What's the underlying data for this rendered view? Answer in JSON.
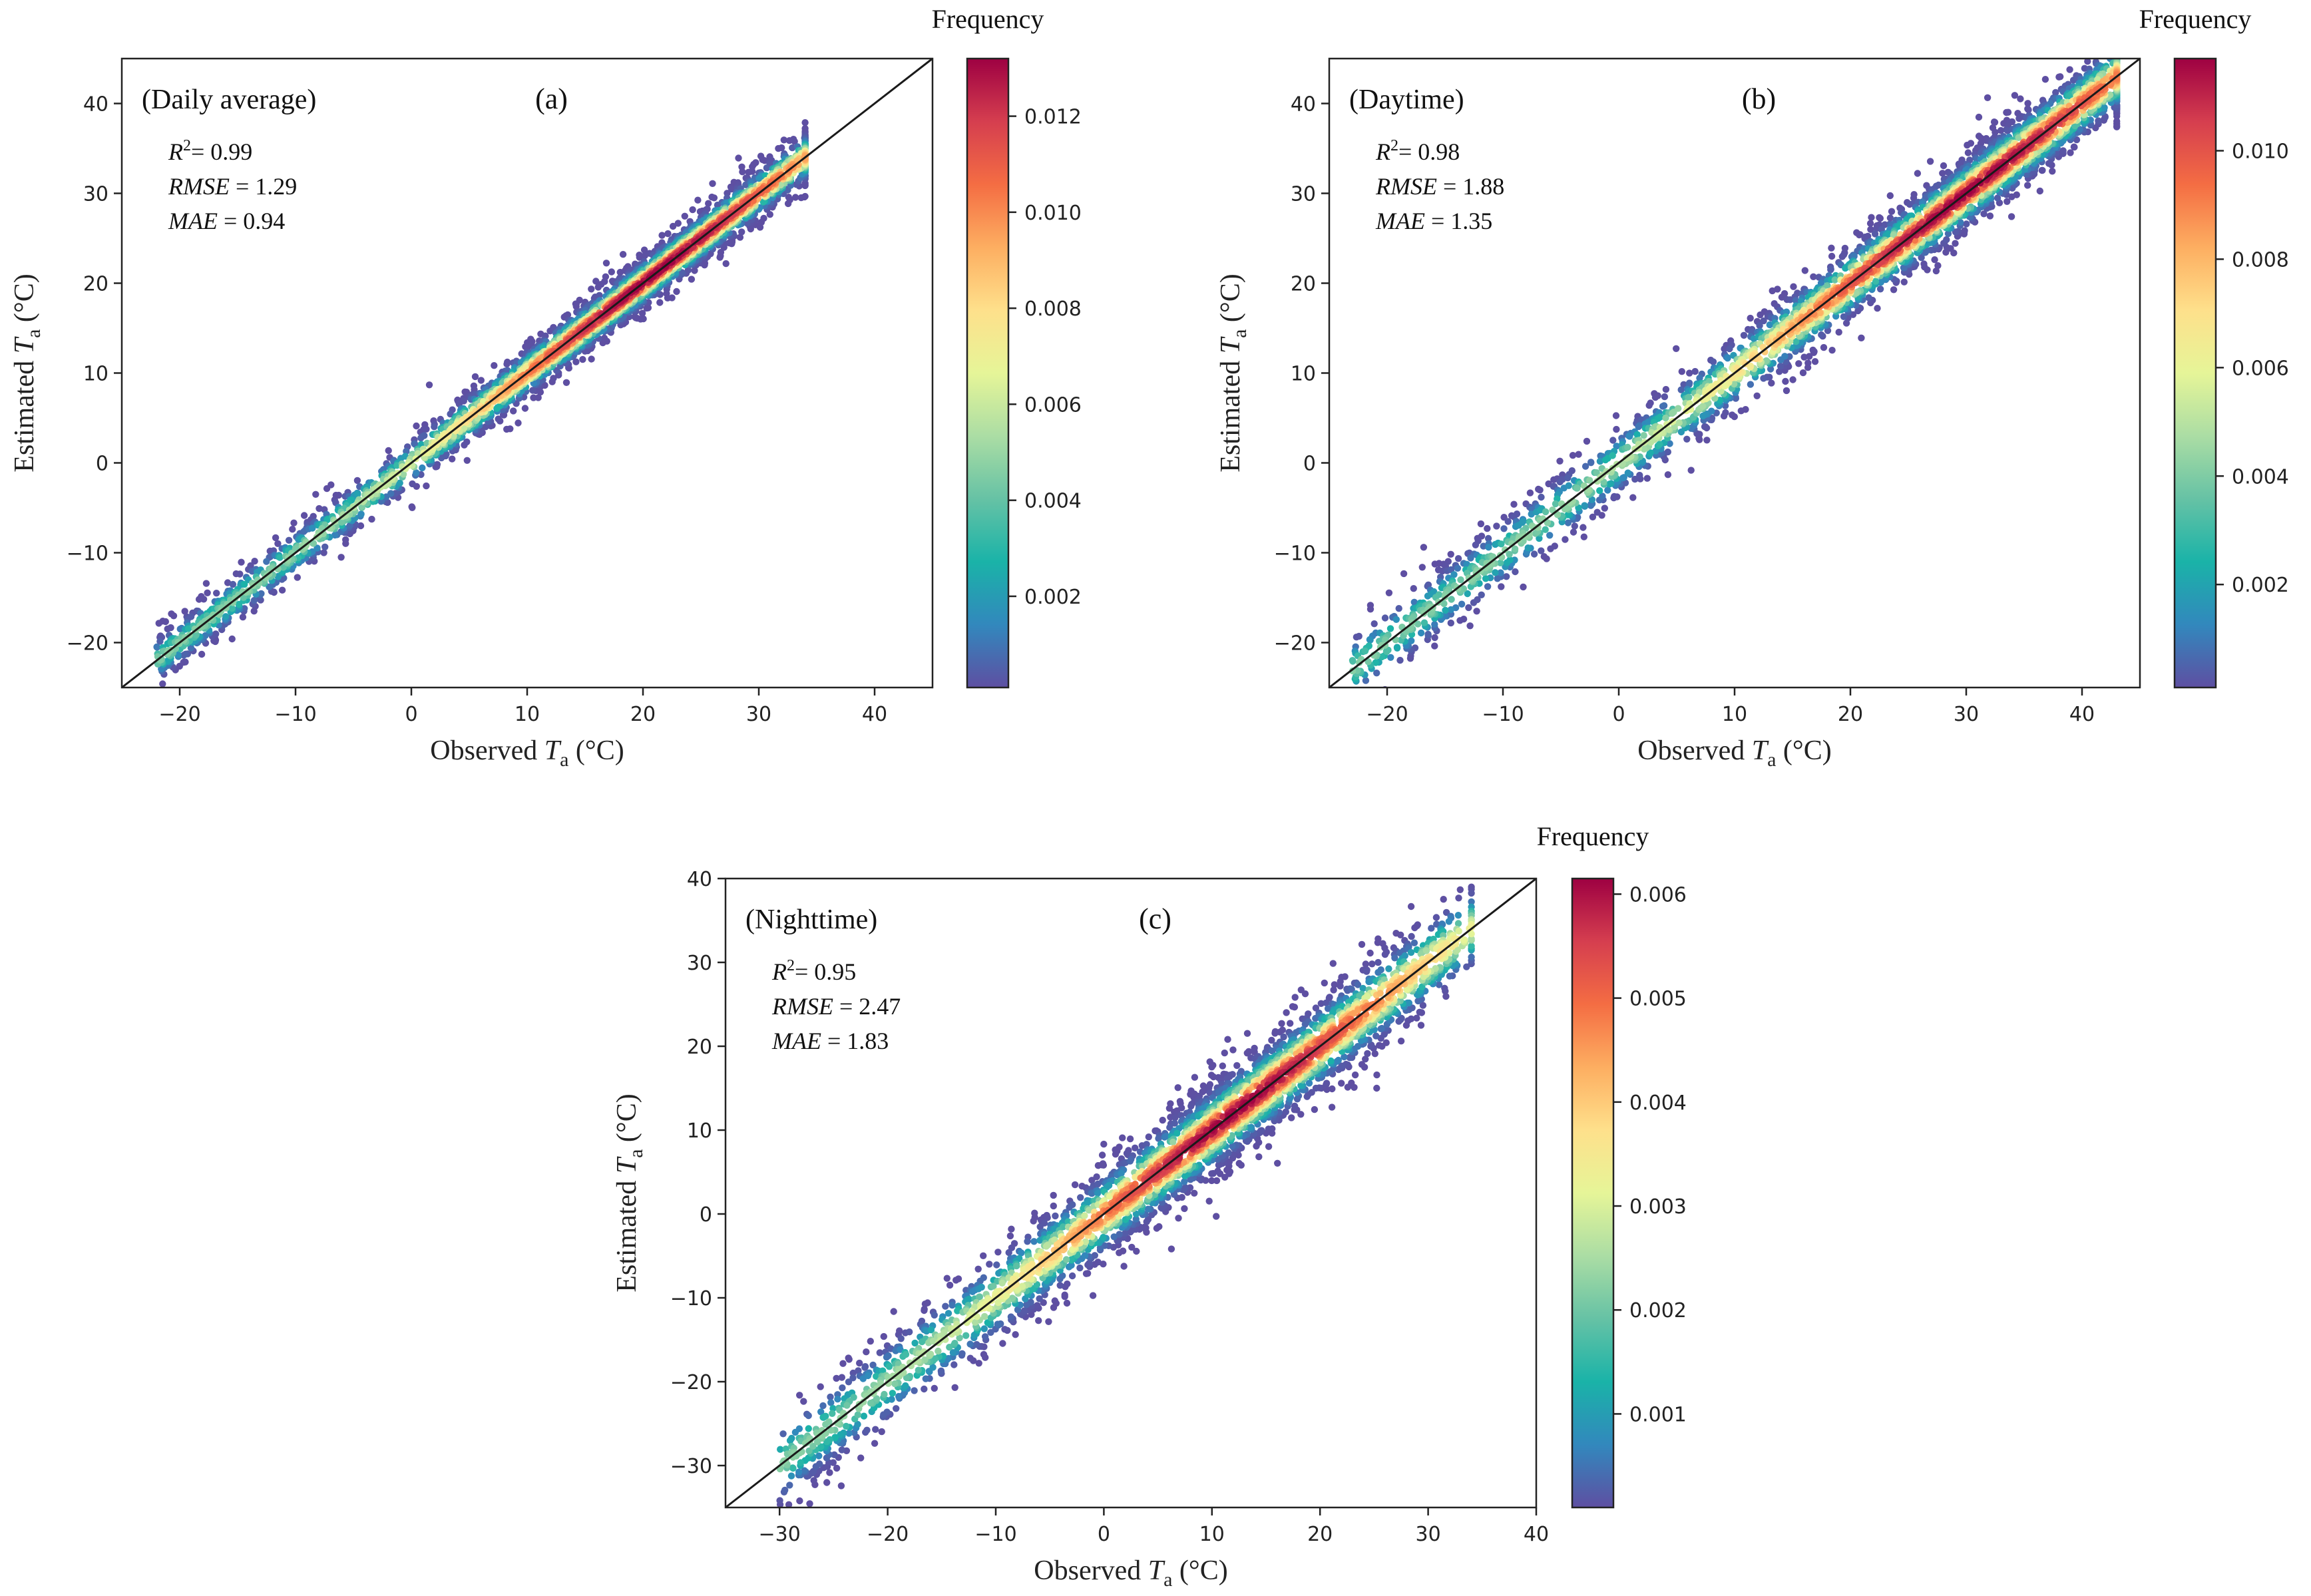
{
  "chart_data": [
    {
      "type": "scatter",
      "panel_label": "(a)",
      "title": "(Daily average)",
      "stats": {
        "r2": {
          "label": "R",
          "sup": "2",
          "value": "= 0.99"
        },
        "rmse": {
          "label": "RMSE",
          "value": "= 1.29"
        },
        "mae": {
          "label": "MAE",
          "value": "= 0.94"
        }
      },
      "xlabel": {
        "prefix": "Observed ",
        "var": "T",
        "sub": "a",
        "unit": " (°C)"
      },
      "ylabel": {
        "prefix": "Estimated ",
        "var": "T",
        "sub": "a",
        "unit": " (°C)"
      },
      "xlim": [
        -25,
        45
      ],
      "ylim": [
        -25,
        45
      ],
      "xticks": [
        -20,
        -10,
        0,
        10,
        20,
        30,
        40
      ],
      "yticks": [
        -20,
        -10,
        0,
        10,
        20,
        30,
        40
      ],
      "identity_line": true,
      "density_spread": 1.5,
      "points_range": [
        -22,
        33
      ],
      "density_peak_x": 21,
      "colorbar": {
        "label": "Frequency",
        "min": 0.0001,
        "max": 0.0132,
        "ticks": [
          0.002,
          0.004,
          0.006,
          0.008,
          0.01,
          0.012
        ],
        "tick_labels": [
          "0.002",
          "0.004",
          "0.006",
          "0.008",
          "0.010",
          "0.012"
        ]
      }
    },
    {
      "type": "scatter",
      "panel_label": "(b)",
      "title": "(Daytime)",
      "stats": {
        "r2": {
          "label": "R",
          "sup": "2",
          "value": "= 0.98"
        },
        "rmse": {
          "label": "RMSE",
          "value": "= 1.88"
        },
        "mae": {
          "label": "MAE",
          "value": "= 1.35"
        }
      },
      "xlabel": {
        "prefix": "Observed ",
        "var": "T",
        "sub": "a",
        "unit": " (°C)"
      },
      "ylabel": {
        "prefix": "Estimated ",
        "var": "T",
        "sub": "a",
        "unit": " (°C)"
      },
      "xlim": [
        -25,
        45
      ],
      "ylim": [
        -25,
        45
      ],
      "xticks": [
        -20,
        -10,
        0,
        10,
        20,
        30,
        40
      ],
      "yticks": [
        -20,
        -10,
        0,
        10,
        20,
        30,
        40
      ],
      "identity_line": true,
      "density_spread": 2.2,
      "points_range": [
        -23,
        42
      ],
      "density_peak_x": 30,
      "colorbar": {
        "label": "Frequency",
        "min": 0.0001,
        "max": 0.0117,
        "ticks": [
          0.002,
          0.004,
          0.006,
          0.008,
          0.01
        ],
        "tick_labels": [
          "0.002",
          "0.004",
          "0.006",
          "0.008",
          "0.010"
        ]
      }
    },
    {
      "type": "scatter",
      "panel_label": "(c)",
      "title": "(Nighttime)",
      "stats": {
        "r2": {
          "label": "R",
          "sup": "2",
          "value": "= 0.95"
        },
        "rmse": {
          "label": "RMSE",
          "value": "= 2.47"
        },
        "mae": {
          "label": "MAE",
          "value": "= 1.83"
        }
      },
      "xlabel": {
        "prefix": "Observed ",
        "var": "T",
        "sub": "a",
        "unit": " (°C)"
      },
      "ylabel": {
        "prefix": "Estimated ",
        "var": "T",
        "sub": "a",
        "unit": " (°C)"
      },
      "xlim": [
        -35,
        40
      ],
      "ylim": [
        -35,
        40
      ],
      "xticks": [
        -30,
        -20,
        -10,
        0,
        10,
        20,
        30,
        40
      ],
      "yticks": [
        -30,
        -20,
        -10,
        0,
        10,
        20,
        30,
        40
      ],
      "identity_line": true,
      "density_spread": 2.9,
      "points_range": [
        -30,
        33
      ],
      "density_peak_x": 12,
      "colorbar": {
        "label": "Frequency",
        "min": 0.0001,
        "max": 0.00615,
        "ticks": [
          0.001,
          0.002,
          0.003,
          0.004,
          0.005,
          0.006
        ],
        "tick_labels": [
          "0.001",
          "0.002",
          "0.003",
          "0.004",
          "0.005",
          "0.006"
        ]
      }
    }
  ],
  "colormap": [
    "#5e4fa2",
    "#3288bd",
    "#1ab3a8",
    "#66c2a5",
    "#abdda4",
    "#e6f598",
    "#fee08b",
    "#fdae61",
    "#f46d43",
    "#d53e4f",
    "#9e0142"
  ]
}
